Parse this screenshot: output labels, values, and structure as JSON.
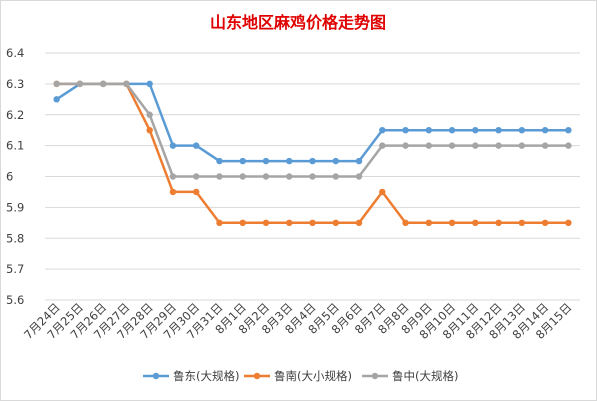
{
  "chart_data": {
    "type": "line",
    "title": "山东地区麻鸡价格走势图",
    "xlabel": "",
    "ylabel": "",
    "ylim": [
      5.6,
      6.4
    ],
    "yticks": [
      "5.6",
      "5.7",
      "5.8",
      "5.9",
      "6",
      "6.1",
      "6.2",
      "6.3",
      "6.4"
    ],
    "grid": true,
    "legend_position": "bottom",
    "categories": [
      "7月24日",
      "7月25日",
      "7月26日",
      "7月27日",
      "7月28日",
      "7月29日",
      "7月30日",
      "7月31日",
      "8月1日",
      "8月2日",
      "8月3日",
      "8月4日",
      "8月5日",
      "8月6日",
      "8月7日",
      "8月8日",
      "8月9日",
      "8月10日",
      "8月11日",
      "8月12日",
      "8月13日",
      "8月14日",
      "8月15日"
    ],
    "series": [
      {
        "name": "鲁东(大规格)",
        "color": "#5b9bd5",
        "values": [
          6.25,
          6.3,
          6.3,
          6.3,
          6.3,
          6.1,
          6.1,
          6.05,
          6.05,
          6.05,
          6.05,
          6.05,
          6.05,
          6.05,
          6.15,
          6.15,
          6.15,
          6.15,
          6.15,
          6.15,
          6.15,
          6.15,
          6.15
        ]
      },
      {
        "name": "鲁南(大小规格)",
        "color": "#ed7d31",
        "values": [
          6.3,
          6.3,
          6.3,
          6.3,
          6.15,
          5.95,
          5.95,
          5.85,
          5.85,
          5.85,
          5.85,
          5.85,
          5.85,
          5.85,
          5.95,
          5.85,
          5.85,
          5.85,
          5.85,
          5.85,
          5.85,
          5.85,
          5.85
        ]
      },
      {
        "name": "鲁中(大规格)",
        "color": "#a5a5a5",
        "values": [
          6.3,
          6.3,
          6.3,
          6.3,
          6.2,
          6.0,
          6.0,
          6.0,
          6.0,
          6.0,
          6.0,
          6.0,
          6.0,
          6.0,
          6.1,
          6.1,
          6.1,
          6.1,
          6.1,
          6.1,
          6.1,
          6.1,
          6.1
        ]
      }
    ]
  }
}
